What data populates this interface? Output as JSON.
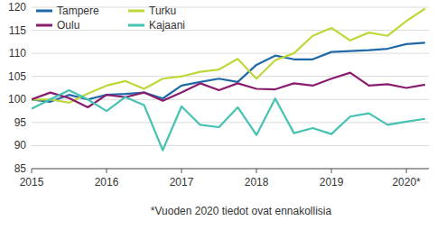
{
  "chart_data": {
    "type": "line",
    "annotation": "*Vuoden 2020 tiedot ovat ennakollisia",
    "x": [
      2015,
      2015.25,
      2015.5,
      2015.75,
      2016,
      2016.25,
      2016.5,
      2016.75,
      2017,
      2017.25,
      2017.5,
      2017.75,
      2018,
      2018.25,
      2018.5,
      2018.75,
      2019,
      2019.25,
      2019.5,
      2019.75,
      2020,
      2020.25
    ],
    "series": [
      {
        "name": "Tampere",
        "color": "#2069a8",
        "values": [
          100,
          99.5,
          101,
          100,
          101,
          101.2,
          101.5,
          100.2,
          103,
          103.8,
          104.5,
          103.8,
          107.5,
          109.5,
          108.7,
          108.7,
          110.3,
          110.5,
          110.7,
          111,
          112,
          112.3
        ]
      },
      {
        "name": "Turku",
        "color": "#bfd739",
        "values": [
          100,
          100,
          99.3,
          101.3,
          103,
          104,
          102.3,
          104.5,
          105,
          106,
          106.5,
          108.8,
          104.5,
          108.5,
          110,
          113.8,
          115.5,
          112.8,
          114.5,
          113.8,
          117,
          119.7
        ]
      },
      {
        "name": "Oulu",
        "color": "#8a1c6e",
        "values": [
          100,
          101.5,
          100.3,
          98.3,
          101,
          100.5,
          101.5,
          99.7,
          101.5,
          103.5,
          102,
          103.5,
          102.3,
          102.2,
          103.5,
          103,
          104.5,
          105.8,
          103,
          103.3,
          102.5,
          103.2
        ]
      },
      {
        "name": "Kajaani",
        "color": "#45c2b1",
        "values": [
          98,
          100,
          102,
          100,
          97.5,
          100.5,
          98.8,
          89,
          98.5,
          94.5,
          94,
          98.3,
          92.3,
          100.2,
          92.7,
          93.8,
          92.5,
          96.3,
          97,
          94.5,
          95.2,
          95.8
        ]
      }
    ],
    "xlim": [
      2015,
      2020.3
    ],
    "xticks": [
      2015,
      2016,
      2017,
      2018,
      2019,
      {
        "value": 2020,
        "label": "2020*"
      }
    ],
    "ylim": [
      85,
      120
    ],
    "yticks": [
      85,
      90,
      95,
      100,
      105,
      110,
      115,
      120
    ],
    "grid": true,
    "legend": "top-left"
  }
}
